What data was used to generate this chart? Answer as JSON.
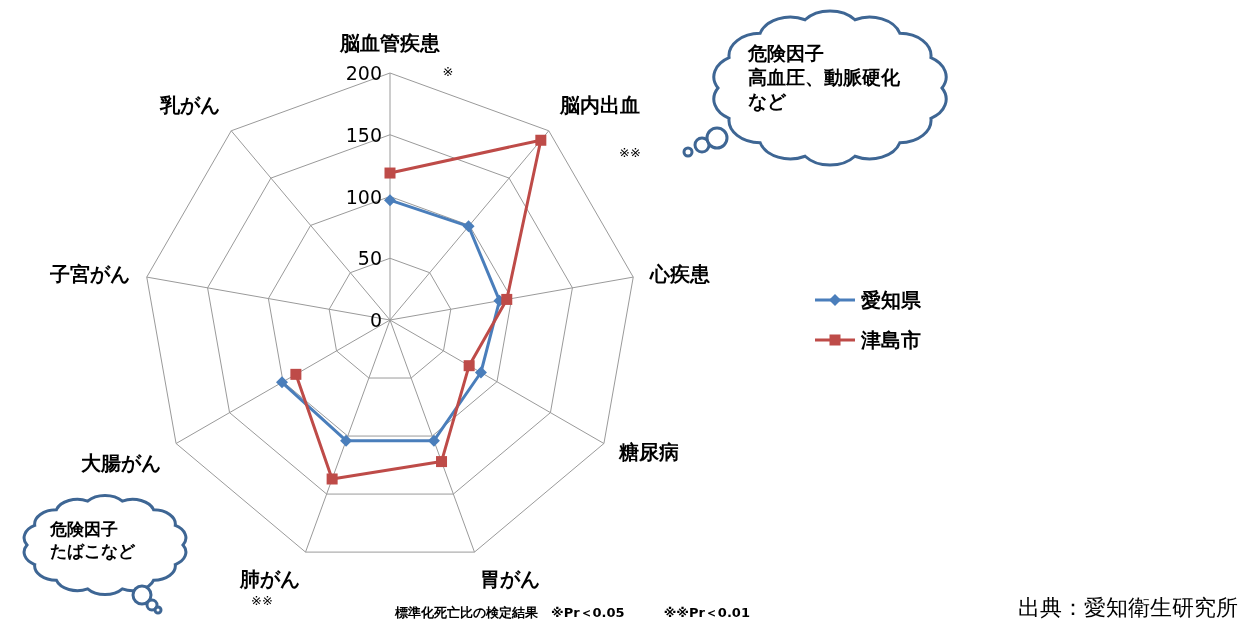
{
  "chart_data": {
    "type": "radar",
    "categories": [
      "脳血管疾患",
      "脳内出血",
      "心疾患",
      "糖尿病",
      "胃がん",
      "肺がん",
      "大腸がん",
      "子宮がん",
      "乳がん"
    ],
    "series": [
      {
        "name": "愛知県",
        "color": "#4a7ebb",
        "marker": "diamond",
        "values": [
          97,
          99,
          90,
          85,
          104,
          104,
          101,
          null,
          null
        ]
      },
      {
        "name": "津島市",
        "color": "#be4b48",
        "marker": "square",
        "values": [
          119,
          190,
          96,
          74,
          122,
          137,
          88,
          null,
          null
        ]
      }
    ],
    "ylim": [
      0,
      200
    ],
    "yticks": [
      0,
      50,
      100,
      150,
      200
    ],
    "grid": true,
    "legend": "right",
    "annotations": [
      "※",
      "※※",
      "※※",
      "危険因子",
      "高血圧、動脈硬化",
      "など",
      "危険因子",
      "たばこなど",
      "標準化死亡比の検定結果　※Pr＜0.05　　　※※Pr＜0.01",
      "出典：愛知衛生研究所"
    ]
  }
}
